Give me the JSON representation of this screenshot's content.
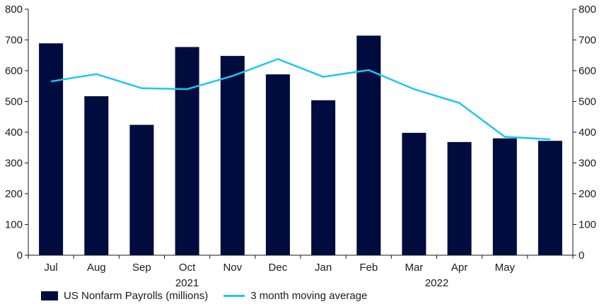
{
  "chart_data": {
    "type": "bar",
    "categories": [
      "Jul",
      "Aug",
      "Sep",
      "Oct",
      "Nov",
      "Dec",
      "Jan",
      "Feb",
      "Mar",
      "Apr",
      "May",
      ""
    ],
    "year_labels": [
      {
        "label": "2021",
        "category_index": 3
      },
      {
        "label": "2022",
        "category_index": 8.5
      }
    ],
    "series": [
      {
        "name": "US Nonfarm Payrolls (millions)",
        "type": "bar",
        "color": "#000c3d",
        "values": [
          689,
          517,
          424,
          677,
          648,
          588,
          504,
          714,
          398,
          368,
          380,
          372
        ]
      },
      {
        "name": "3 month moving average",
        "type": "line",
        "color": "#1ec6f0",
        "values": [
          565,
          589,
          543,
          540,
          583,
          638,
          580,
          602,
          540,
          495,
          385,
          377
        ]
      }
    ],
    "ylim": [
      0,
      800
    ],
    "yticks": [
      0,
      100,
      200,
      300,
      400,
      500,
      600,
      700,
      800
    ],
    "right_axis": true,
    "legend_position": "bottom-left",
    "grid": false
  }
}
